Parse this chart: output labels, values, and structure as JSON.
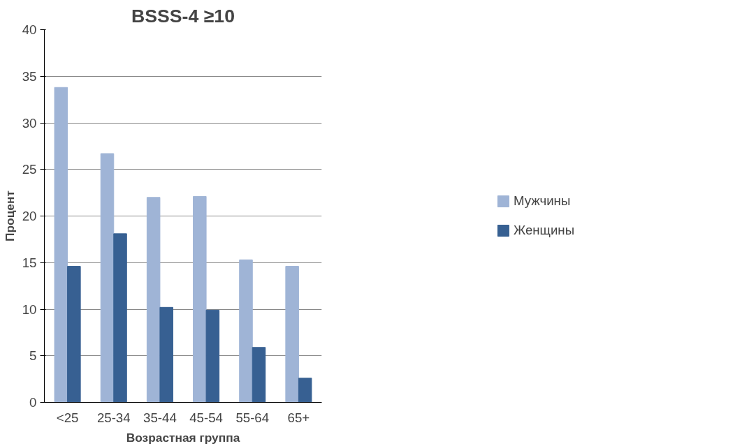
{
  "chart_data": {
    "type": "bar",
    "title": "BSSS-4 ≥10",
    "xlabel": "Возрастная группа",
    "ylabel": "Процент",
    "categories": [
      "<25",
      "25-34",
      "35-44",
      "45-54",
      "55-64",
      "65+"
    ],
    "series": [
      {
        "name": "Мужчины",
        "color": "#9fb4d6",
        "values": [
          33.8,
          26.7,
          22.0,
          22.1,
          15.3,
          14.6
        ]
      },
      {
        "name": "Женщины",
        "color": "#376092",
        "values": [
          14.6,
          18.1,
          10.2,
          9.9,
          5.9,
          2.6
        ]
      }
    ],
    "ylim": [
      0,
      40
    ],
    "yticks": [
      0,
      5,
      10,
      15,
      20,
      25,
      30,
      35,
      40
    ],
    "grid": "y",
    "legend": "right"
  }
}
